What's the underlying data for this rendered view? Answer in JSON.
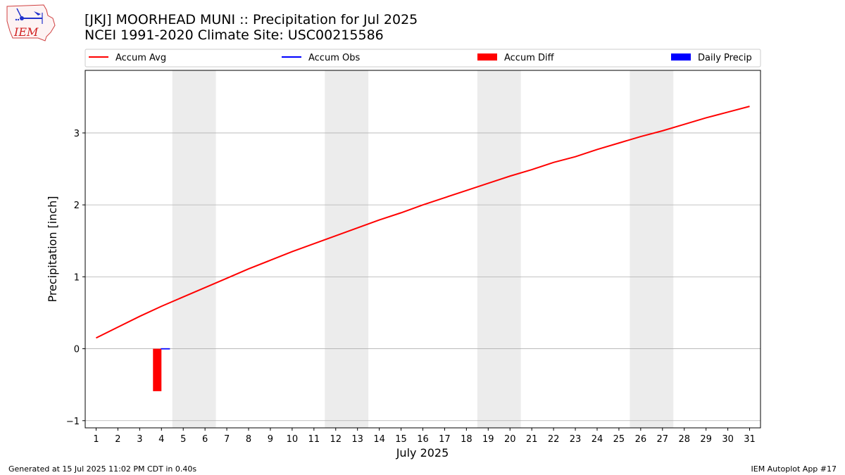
{
  "header": {
    "title_line1": "[JKJ] MOORHEAD MUNI :: Precipitation for Jul 2025",
    "title_line2": "NCEI 1991-2020 Climate Site: USC00215586",
    "logo_text": "IEM"
  },
  "footer": {
    "left": "Generated at 15 Jul 2025 11:02 PM CDT in 0.40s",
    "right": "IEM Autoplot App #17"
  },
  "chart_data": {
    "type": "line",
    "xlabel": "July 2025",
    "ylabel": "Precipitation [inch]",
    "ylim": [
      -1.1,
      3.87
    ],
    "xlim": [
      0.5,
      31.5
    ],
    "yticks": [
      -1,
      0,
      1,
      2,
      3
    ],
    "ytick_labels": [
      "−1",
      "0",
      "1",
      "2",
      "3"
    ],
    "x": [
      1,
      2,
      3,
      4,
      5,
      6,
      7,
      8,
      9,
      10,
      11,
      12,
      13,
      14,
      15,
      16,
      17,
      18,
      19,
      20,
      21,
      22,
      23,
      24,
      25,
      26,
      27,
      28,
      29,
      30,
      31
    ],
    "xtick_labels": [
      "1",
      "2",
      "3",
      "4",
      "5",
      "6",
      "7",
      "8",
      "9",
      "10",
      "11",
      "12",
      "13",
      "14",
      "15",
      "16",
      "17",
      "18",
      "19",
      "20",
      "21",
      "22",
      "23",
      "24",
      "25",
      "26",
      "27",
      "28",
      "29",
      "30",
      "31"
    ],
    "weekend_bands": [
      [
        4.5,
        6.5
      ],
      [
        11.5,
        13.5
      ],
      [
        18.5,
        20.5
      ],
      [
        25.5,
        27.5
      ]
    ],
    "grid": "horizontal",
    "legend_position": "top",
    "series": [
      {
        "name": "Accum Avg",
        "kind": "line",
        "color": "#ff0000",
        "x": [
          1,
          2,
          3,
          4,
          5,
          6,
          7,
          8,
          9,
          10,
          11,
          12,
          13,
          14,
          15,
          16,
          17,
          18,
          19,
          20,
          21,
          22,
          23,
          24,
          25,
          26,
          27,
          28,
          29,
          30,
          31
        ],
        "values": [
          0.15,
          0.3,
          0.45,
          0.59,
          0.72,
          0.85,
          0.98,
          1.11,
          1.23,
          1.35,
          1.46,
          1.57,
          1.68,
          1.79,
          1.89,
          2.0,
          2.1,
          2.2,
          2.3,
          2.4,
          2.49,
          2.59,
          2.67,
          2.77,
          2.86,
          2.95,
          3.03,
          3.12,
          3.21,
          3.29,
          3.37
        ]
      },
      {
        "name": "Accum Obs",
        "kind": "line",
        "color": "#0000ff",
        "x": [
          4
        ],
        "values": [
          0.0
        ]
      },
      {
        "name": "Accum Diff",
        "kind": "bar",
        "color": "#ff0000",
        "x": [
          4
        ],
        "values": [
          -0.59
        ]
      },
      {
        "name": "Daily Precip",
        "kind": "bar",
        "color": "#0000ff",
        "x": [
          4
        ],
        "values": [
          0.0
        ]
      }
    ]
  }
}
